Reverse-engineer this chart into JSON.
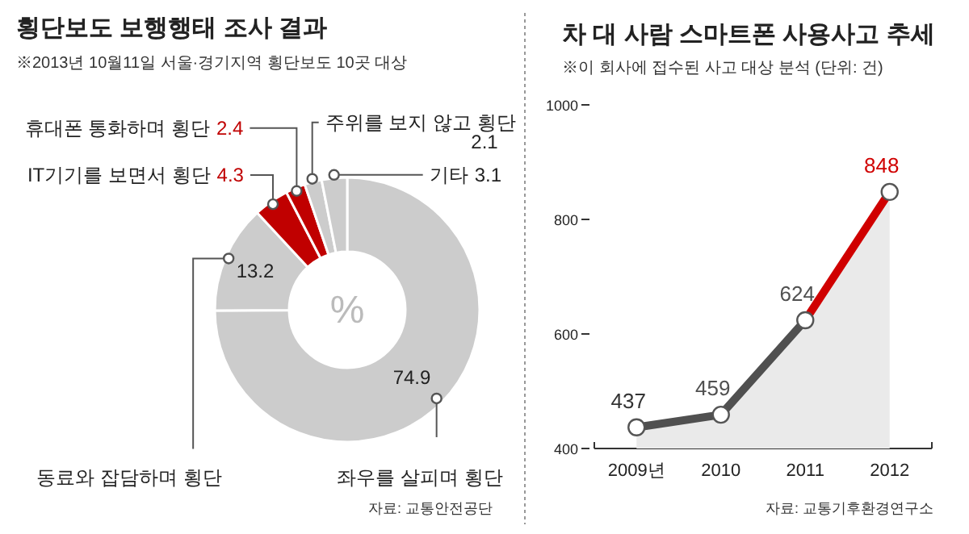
{
  "chart_data": [
    {
      "type": "donut",
      "title": "횡단보도 보행행태 조사 결과",
      "subtitle": "※2013년 10월11일 서울·경기지역 횡단보도 10곳 대상",
      "categories": [
        "좌우를 살피며 횡단",
        "동료와 잡담하며 횡단",
        "IT기기를 보면서 횡단",
        "휴대폰 통화하며 횡단",
        "주위를 보지 않고 횡단",
        "기타"
      ],
      "values": [
        74.9,
        13.2,
        4.3,
        2.4,
        2.1,
        3.1
      ],
      "colors": [
        "#cccccc",
        "#cccccc",
        "#c00000",
        "#c00000",
        "#cccccc",
        "#cccccc"
      ],
      "data_labels": true,
      "annotations": [
        "%",
        "자료: 교통안전공단"
      ]
    },
    {
      "type": "area",
      "title": "차 대 사람 스마트폰 사용사고 추세",
      "subtitle": "※이 회사에 접수된 사고 대상 분석  (단위: 건)",
      "categories": [
        "2009년",
        "2010",
        "2011",
        "2012"
      ],
      "series": [
        {
          "color": "#505050",
          "colors": [
            "#333333",
            "#505050",
            "#505050",
            "#d00000"
          ],
          "values": [
            437,
            459,
            624,
            848
          ]
        }
      ],
      "ylim": [
        400,
        1000
      ],
      "yticks": [
        400,
        600,
        800,
        1000
      ],
      "marker": "circle",
      "data_labels": true,
      "annotations": [
        "자료: 교통기후환경연구소"
      ]
    }
  ]
}
